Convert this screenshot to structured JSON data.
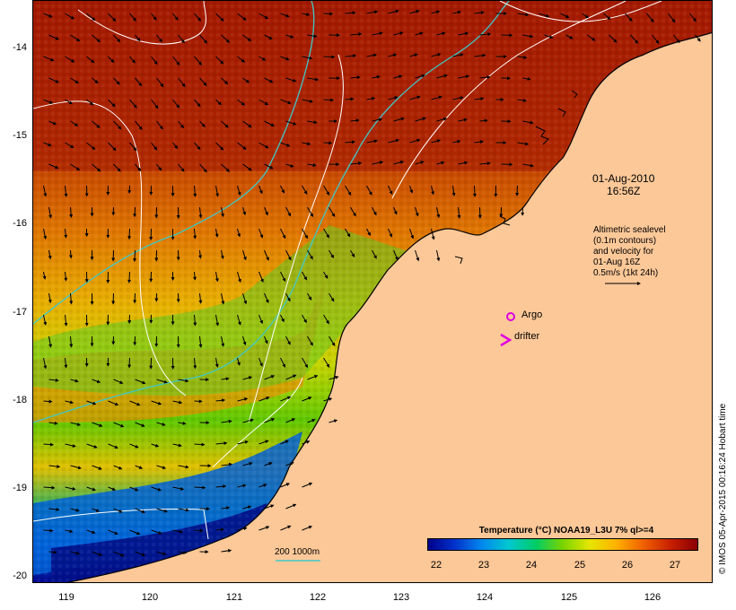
{
  "map": {
    "date": "01-Aug-2010",
    "time": "16:56Z",
    "altimetry_lines": [
      "Altimetric sealevel",
      "(0.1m contours)",
      "and velocity for",
      "01-Aug 16Z",
      "0.5m/s (1kt 24h)"
    ],
    "argo_label": "Argo",
    "drifter_label": "drifter",
    "depth_label": "200  1000m",
    "colorbar_title": "Temperature (°C) NOAA19_L3U 7% ql>=4",
    "colorbar_ticks": [
      "22",
      "23",
      "24",
      "25",
      "26",
      "27"
    ],
    "credit": "© IMOS 05-Apr-2015 00:16:24 Hobart time",
    "lat_ticks": [
      "-14",
      "-15",
      "-16",
      "-17",
      "-18",
      "-19",
      "-20"
    ],
    "lon_ticks": [
      "119",
      "120",
      "121",
      "122",
      "123",
      "124",
      "125",
      "126"
    ],
    "colors": {
      "land": "#fcc898",
      "sst_warm": "#b41e00",
      "sst_cool": "#00008b",
      "contour": "#ffffff",
      "bathymetry": "#40c8c8",
      "argo": "#e000e0",
      "drifter": "#e000e0"
    }
  }
}
